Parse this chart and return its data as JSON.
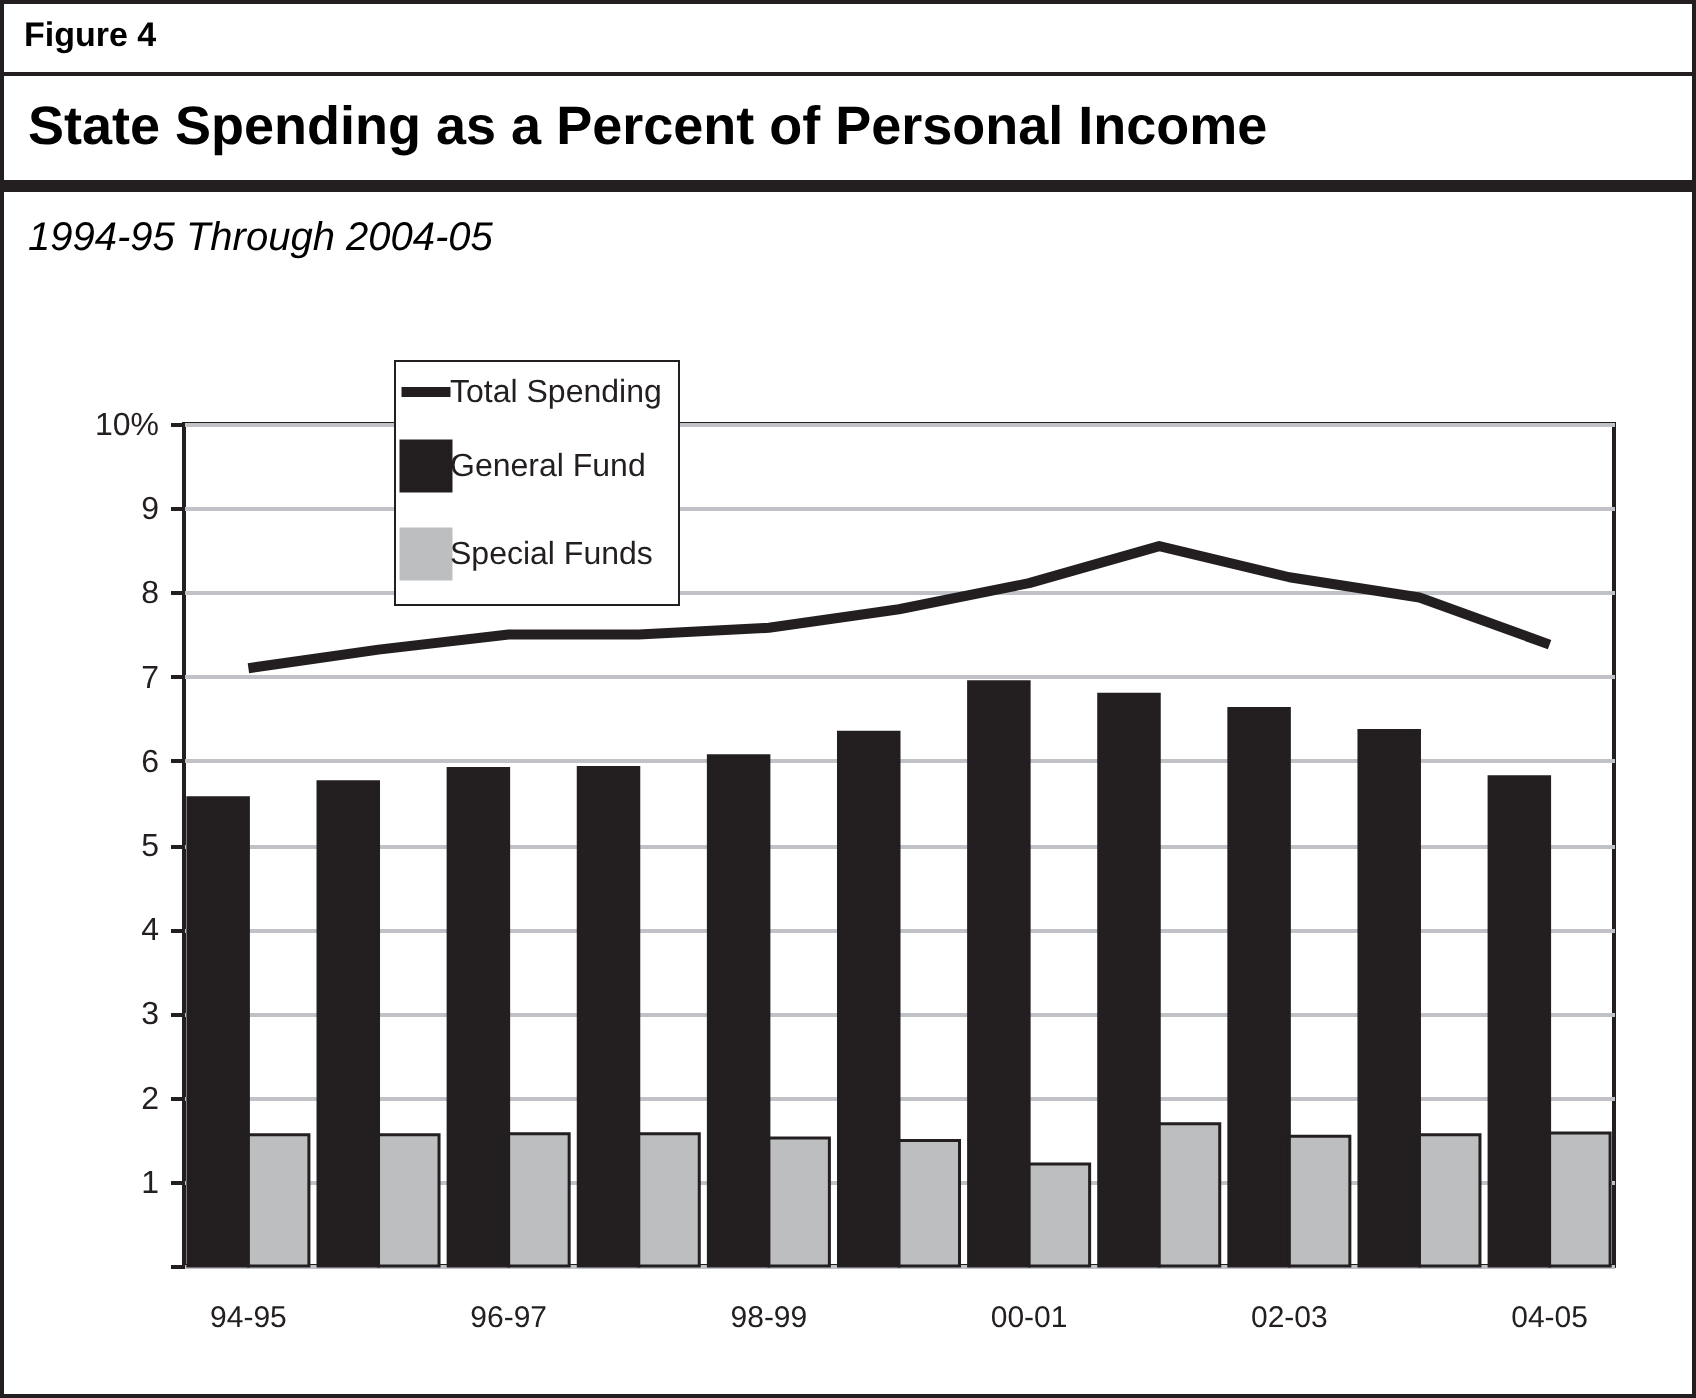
{
  "chart_data": {
    "type": "bar",
    "title": "State Spending as a Percent of Personal Income",
    "subtitle": "1994-95 Through 2004-05",
    "annotations": [
      "Figure 4"
    ],
    "categories": [
      "94-95",
      null,
      "96-97",
      null,
      "98-99",
      null,
      "00-01",
      null,
      "02-03",
      null,
      "04-05"
    ],
    "series": [
      {
        "name": "Total Spending",
        "type": "line",
        "color": "#231f20",
        "values": [
          7.1,
          7.32,
          7.5,
          7.5,
          7.58,
          7.8,
          8.11,
          8.55,
          8.18,
          7.94,
          7.38
        ]
      },
      {
        "name": "General Fund",
        "color": "#231f20",
        "values": [
          5.56,
          5.75,
          5.91,
          5.92,
          6.06,
          6.34,
          6.94,
          6.79,
          6.62,
          6.36,
          5.81
        ]
      },
      {
        "name": "Special Funds",
        "color": "#bcbec0",
        "values": [
          1.56,
          1.56,
          1.57,
          1.57,
          1.52,
          1.49,
          1.21,
          1.69,
          1.54,
          1.56,
          1.58
        ]
      }
    ],
    "ylim": [
      0,
      10
    ],
    "yticks": [
      {
        "value": 0,
        "label": null
      },
      1,
      2,
      3,
      4,
      5,
      6,
      7,
      8,
      9,
      {
        "value": 10,
        "label": "10%"
      }
    ],
    "grid": "y",
    "legend": "top left"
  }
}
